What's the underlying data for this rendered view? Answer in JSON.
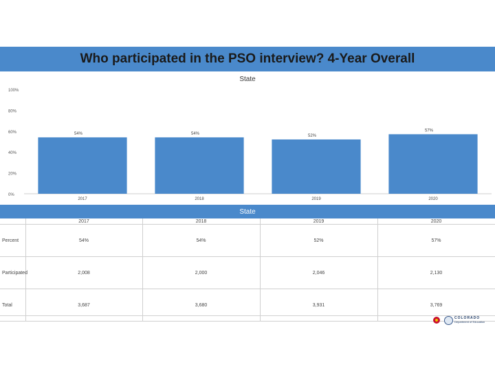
{
  "slide_title": "Who participated in the PSO interview? 4-Year Overall",
  "chart_data": {
    "type": "bar",
    "title": "State",
    "categories": [
      "2017",
      "2018",
      "2019",
      "2020"
    ],
    "values": [
      54,
      54,
      52,
      57
    ],
    "value_labels": [
      "54%",
      "54%",
      "52%",
      "57%"
    ],
    "ylim": [
      0,
      100
    ],
    "yticks": [
      {
        "value": 0,
        "label": "0%"
      },
      {
        "value": 20,
        "label": "20%"
      },
      {
        "value": 40,
        "label": "40%"
      },
      {
        "value": 60,
        "label": "60%"
      },
      {
        "value": 80,
        "label": "80%"
      },
      {
        "value": 100,
        "label": "100%"
      }
    ],
    "bar_color": "#4a89cb",
    "grid": false,
    "legend": "none"
  },
  "table": {
    "title": "State",
    "years": [
      "2017",
      "2018",
      "2019",
      "2020"
    ],
    "rows": [
      {
        "label": "Percent",
        "values": [
          "54%",
          "54%",
          "52%",
          "57%"
        ]
      },
      {
        "label": "Participated",
        "values": [
          "2,008",
          "2,000",
          "2,046",
          "2,130"
        ]
      },
      {
        "label": "Total",
        "values": [
          "3,687",
          "3,680",
          "3,931",
          "3,769"
        ]
      }
    ]
  },
  "logo": {
    "name_line1": "COLORADO",
    "name_line2": "Department of Education"
  },
  "colors": {
    "header_blue": "#4a89cb",
    "logo_red": "#c8102e",
    "logo_gold": "#f2c200"
  }
}
